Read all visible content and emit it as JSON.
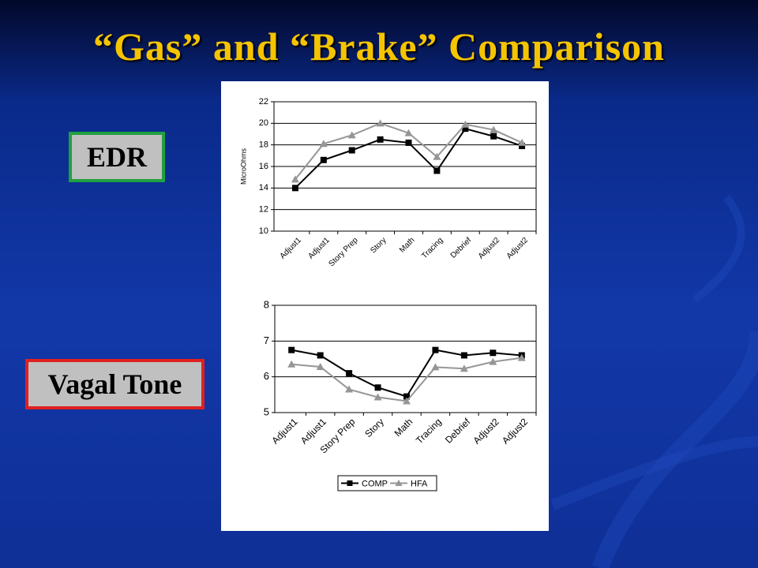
{
  "title": "“Gas” and “Brake” Comparison",
  "labels": [
    "EDR",
    "Vagal Tone"
  ],
  "chart_data": [
    {
      "type": "line",
      "y_label": "MicroOhms",
      "categories": [
        "Adjust1",
        "Adjust1",
        "Story Prep",
        "Story",
        "Math",
        "Tracing",
        "Debrief",
        "Adjust2",
        "Adjust2"
      ],
      "series": [
        {
          "color": "#000000",
          "marker": "square",
          "values": [
            14,
            16.6,
            17.5,
            18.5,
            18.2,
            15.6,
            19.5,
            18.8,
            17.9
          ]
        },
        {
          "color": "#969696",
          "marker": "triangle",
          "values": [
            14.8,
            18.1,
            18.9,
            20,
            19.1,
            16.9,
            19.9,
            19.4,
            18.2
          ]
        }
      ],
      "ylim": [
        10,
        22
      ],
      "yticks": [
        10,
        12,
        14,
        16,
        18,
        20,
        22
      ],
      "grid": true,
      "legend": false
    },
    {
      "type": "line",
      "categories": [
        "Adjust1",
        "Adjust1",
        "Story Prep",
        "Story",
        "Math",
        "Tracing",
        "Debrief",
        "Adjust2",
        "Adjust2"
      ],
      "series": [
        {
          "name": "COMP",
          "color": "#000000",
          "marker": "square",
          "values": [
            6.75,
            6.6,
            6.1,
            5.7,
            5.45,
            6.75,
            6.6,
            6.67,
            6.6
          ]
        },
        {
          "name": "HFA",
          "color": "#969696",
          "marker": "triangle",
          "values": [
            6.35,
            6.28,
            5.65,
            5.43,
            5.32,
            6.27,
            6.23,
            6.42,
            6.53
          ]
        }
      ],
      "ylim": [
        5,
        8
      ],
      "yticks": [
        5,
        6,
        7,
        8
      ],
      "grid": true,
      "legend": "bottom"
    }
  ]
}
